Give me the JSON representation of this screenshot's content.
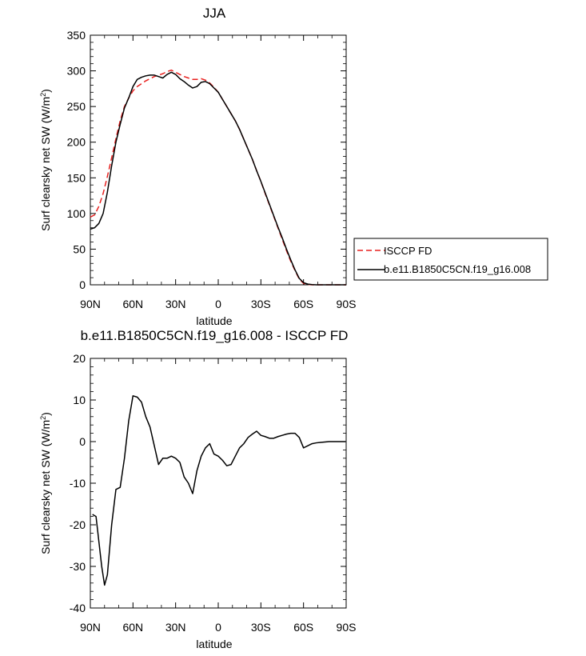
{
  "chart_data": [
    {
      "type": "line",
      "title": "JJA",
      "xlabel": "latitude",
      "ylabel": "Surf clearsky net SW (W/m",
      "ylabel_sup": "2",
      "ylabel_close": ")",
      "xlim": [
        90,
        -90
      ],
      "ylim": [
        0,
        350
      ],
      "xticks": [
        90,
        60,
        30,
        0,
        -30,
        -60,
        -90
      ],
      "xtick_labels": [
        "90N",
        "60N",
        "30N",
        "0",
        "30S",
        "60S",
        "90S"
      ],
      "yticks": [
        0,
        50,
        100,
        150,
        200,
        250,
        300,
        350
      ],
      "ytick_labels": [
        "0",
        "50",
        "100",
        "150",
        "200",
        "250",
        "300",
        "350"
      ],
      "legend_position": "right",
      "series": [
        {
          "name": "ISCCP FD",
          "color": "#e8211f",
          "dash": "dashed",
          "x": [
            90,
            87,
            84,
            81,
            78,
            75,
            72,
            69,
            66,
            63,
            60,
            57,
            54,
            51,
            48,
            45,
            42,
            39,
            36,
            33,
            30,
            27,
            24,
            21,
            18,
            15,
            12,
            9,
            6,
            3,
            0,
            -3,
            -6,
            -9,
            -12,
            -15,
            -18,
            -21,
            -24,
            -27,
            -30,
            -33,
            -36,
            -39,
            -42,
            -45,
            -48,
            -51,
            -54,
            -57,
            -60,
            -63,
            -66,
            -69,
            -72,
            -75,
            -78,
            -81,
            -84,
            -87,
            -90
          ],
          "y": [
            95,
            98,
            110,
            128,
            152,
            178,
            205,
            230,
            250,
            262,
            272,
            278,
            282,
            286,
            289,
            292,
            294,
            296,
            299,
            301,
            298,
            295,
            292,
            290,
            288,
            288,
            289,
            287,
            283,
            277,
            270,
            260,
            250,
            240,
            230,
            218,
            204,
            190,
            176,
            160,
            145,
            128,
            112,
            96,
            80,
            64,
            48,
            33,
            20,
            8,
            2,
            0.5,
            0,
            0,
            0,
            0,
            0,
            0,
            0,
            0,
            0
          ]
        },
        {
          "name": "b.e11.B1850C5CN.f19_g16.008",
          "color": "#000000",
          "dash": "solid",
          "x": [
            90,
            87,
            84,
            81,
            78,
            75,
            72,
            69,
            66,
            63,
            60,
            57,
            54,
            51,
            48,
            45,
            42,
            39,
            36,
            33,
            30,
            27,
            24,
            21,
            18,
            15,
            12,
            9,
            6,
            3,
            0,
            -3,
            -6,
            -9,
            -12,
            -15,
            -18,
            -21,
            -24,
            -27,
            -30,
            -33,
            -36,
            -39,
            -42,
            -45,
            -48,
            -51,
            -54,
            -57,
            -60,
            -63,
            -66,
            -69,
            -72,
            -75,
            -78,
            -81,
            -84,
            -87,
            -90
          ],
          "y": [
            78,
            80,
            86,
            100,
            130,
            167,
            200,
            225,
            248,
            262,
            278,
            288,
            291,
            293,
            294,
            294,
            292,
            290,
            295,
            298,
            295,
            289,
            285,
            280,
            276,
            278,
            284,
            285,
            282,
            276,
            270,
            260,
            250,
            240,
            230,
            218,
            204,
            190,
            176,
            160,
            145,
            129,
            113,
            97,
            81,
            66,
            50,
            35,
            21,
            9,
            3,
            1,
            0.3,
            0,
            0,
            0,
            0,
            0,
            0,
            0,
            0
          ]
        }
      ]
    },
    {
      "type": "line",
      "title": "b.e11.B1850C5CN.f19_g16.008 - ISCCP FD",
      "xlabel": "latitude",
      "ylabel": "Surf clearsky net SW (W/m",
      "ylabel_sup": "2",
      "ylabel_close": ")",
      "xlim": [
        90,
        -90
      ],
      "ylim": [
        -40,
        20
      ],
      "xticks": [
        90,
        60,
        30,
        0,
        -30,
        -60,
        -90
      ],
      "xtick_labels": [
        "90N",
        "60N",
        "30N",
        "0",
        "30S",
        "60S",
        "90S"
      ],
      "yticks": [
        -40,
        -30,
        -20,
        -10,
        0,
        10,
        20
      ],
      "ytick_labels": [
        "-40",
        "-30",
        "-20",
        "-10",
        "0",
        "10",
        "20"
      ],
      "series": [
        {
          "color": "#000000",
          "dash": "solid",
          "x": [
            88.5,
            86,
            84,
            82,
            80,
            78,
            75,
            72,
            69,
            66,
            63,
            60,
            57,
            54,
            51,
            48,
            45,
            42,
            39,
            36,
            33,
            30,
            27,
            24,
            21,
            18,
            15,
            12,
            9,
            6,
            3,
            0,
            -3,
            -6,
            -9,
            -12,
            -15,
            -18,
            -21,
            -24,
            -27,
            -30,
            -33,
            -36,
            -39,
            -42,
            -45,
            -48,
            -51,
            -54,
            -57,
            -60,
            -63,
            -66,
            -69,
            -72,
            -75,
            -78,
            -81,
            -84,
            -87,
            -89.5
          ],
          "y": [
            -17.5,
            -18,
            -24,
            -30,
            -34.5,
            -32,
            -20,
            -11.5,
            -11,
            -4,
            5,
            11,
            10.7,
            9.5,
            6,
            3.5,
            -1,
            -5.5,
            -4,
            -4,
            -3.5,
            -4,
            -5,
            -8.5,
            -10,
            -12.5,
            -7,
            -3.5,
            -1.5,
            -0.5,
            -3,
            -3.5,
            -4.5,
            -5.8,
            -5.5,
            -3.5,
            -1.5,
            -0.5,
            1,
            1.8,
            2.5,
            1.5,
            1.2,
            0.8,
            0.8,
            1.2,
            1.5,
            1.8,
            2,
            2,
            1,
            -1.5,
            -1,
            -0.5,
            -0.3,
            -0.2,
            -0.1,
            0,
            0,
            0,
            0,
            0
          ]
        }
      ]
    }
  ]
}
